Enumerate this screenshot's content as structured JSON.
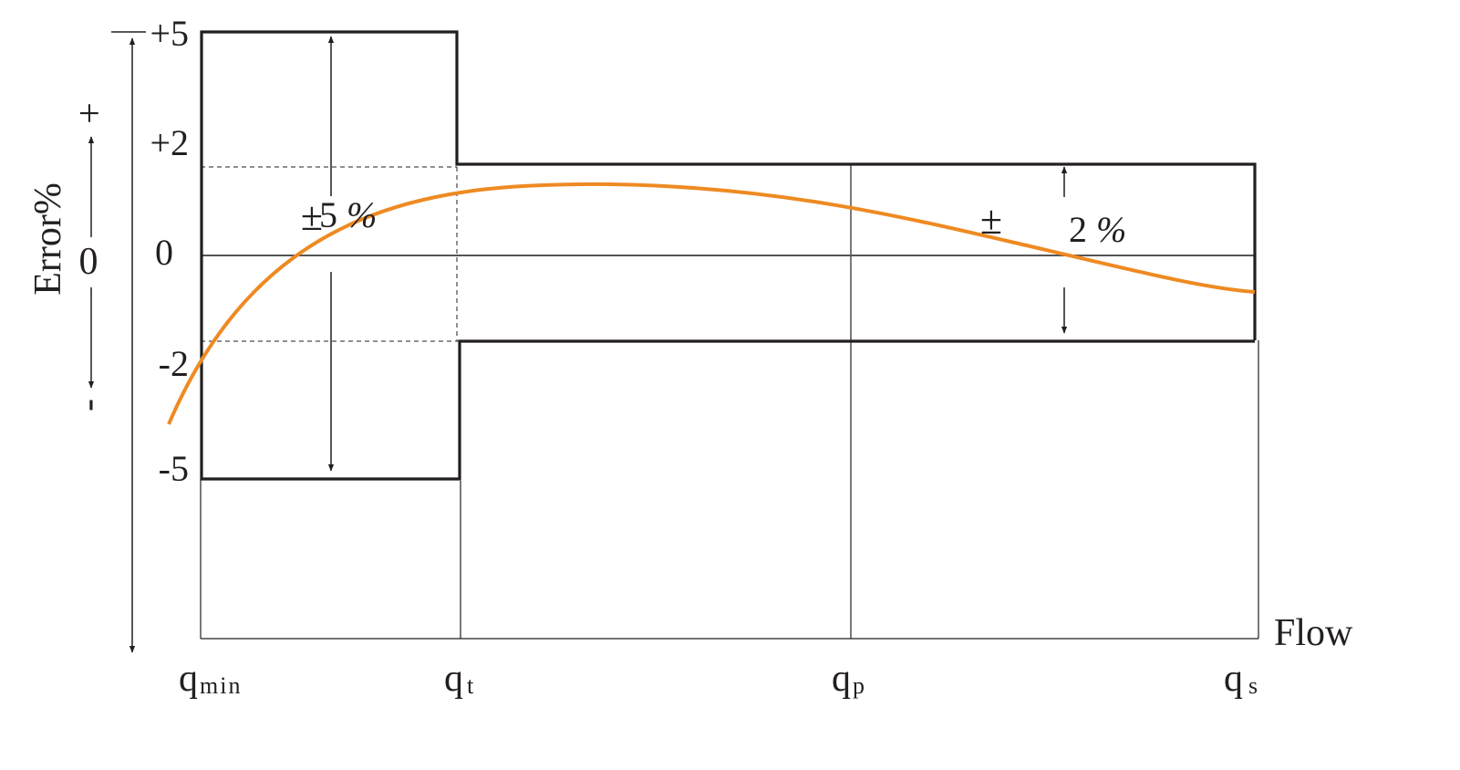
{
  "y_axis": {
    "label": "Error%",
    "zero": "0",
    "plus": "+",
    "minus": "-",
    "ticks": [
      "+5",
      "+2",
      "0",
      "-2",
      "-5"
    ]
  },
  "x_axis": {
    "label": "Flow",
    "ticks": [
      {
        "base": "q",
        "sub": "min"
      },
      {
        "base": "q",
        "sub": "t"
      },
      {
        "base": "q",
        "sub": "p"
      },
      {
        "base": "q",
        "sub": "s"
      }
    ]
  },
  "zones": {
    "lower": {
      "pm": "±",
      "value": "5",
      "unit": "%"
    },
    "upper": {
      "pm": "±",
      "value": "2",
      "unit": "%"
    }
  },
  "colors": {
    "curve": "#ee8a22",
    "lines": "#231f20"
  }
}
